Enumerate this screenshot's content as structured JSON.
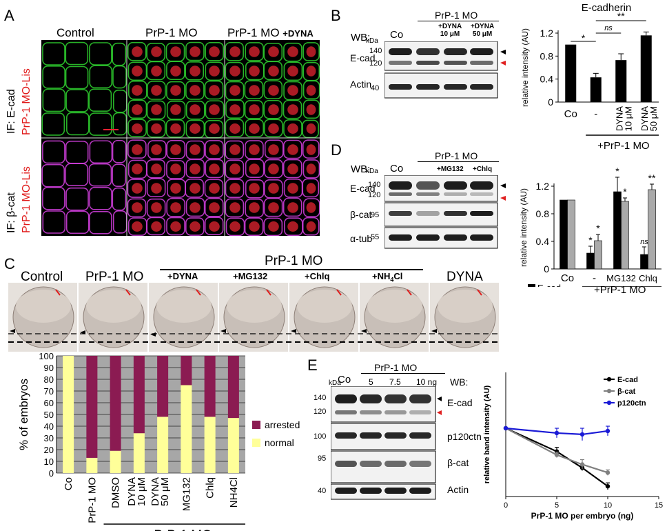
{
  "panels": {
    "A": {
      "letter": "A",
      "columns": [
        "Control",
        "PrP-1 MO",
        "PrP-1 MO",
        "+DYNA"
      ],
      "row1_label_a": "IF: E-cad",
      "row1_label_b": "PrP-1 MO-Lis",
      "row2_label_a": "IF: β-cat",
      "row2_label_b": "PrP-1 MO-Lis"
    },
    "B": {
      "letter": "B",
      "wb": "WB:",
      "kda": "kDa",
      "header_group": "PrP-1 MO",
      "lanes": [
        "Co",
        "",
        "+DYNA",
        "10 μM",
        "+DYNA",
        "50 μM"
      ],
      "bands": [
        "E-cad",
        "Actin"
      ],
      "markers": [
        "140",
        "120",
        "40"
      ],
      "chart_title": "E-cadherin"
    },
    "C": {
      "letter": "C",
      "embryos": [
        "Control",
        "PrP-1 MO",
        "DYNA"
      ],
      "group": "PrP-1 MO",
      "treatments": [
        "+DYNA",
        "+MG132",
        "+Chlq",
        "+NH",
        "4",
        "Cl"
      ],
      "legend": [
        "arrested",
        "normal"
      ],
      "group_label": "+PrP-1 MO"
    },
    "D": {
      "letter": "D",
      "wb": "WB:",
      "kda": "kDa",
      "lanes": [
        "Co",
        "+MG132",
        "+Chlq"
      ],
      "header_group": "PrP-1 MO",
      "bands": [
        "E-cad",
        "β-cat",
        "α-tub"
      ],
      "markers": [
        "140",
        "120",
        "95",
        "55"
      ],
      "legend": [
        "E-cad",
        "β-cat"
      ]
    },
    "E": {
      "letter": "E",
      "kda": "kDa",
      "wb": "WB:",
      "lanes": [
        "Co",
        "5",
        "7.5",
        "10 ng"
      ],
      "header_group": "PrP-1 MO",
      "bands": [
        "E-cad",
        "p120ctn",
        "β-cat",
        "Actin"
      ],
      "markers": [
        "140",
        "120",
        "100",
        "95",
        "40"
      ]
    }
  },
  "chart_data": [
    {
      "id": "B-ecadherin",
      "type": "bar",
      "title": "E-cadherin",
      "ylabel": "relative intensity (AU)",
      "ylim": [
        0,
        1.2
      ],
      "yticks": [
        "0",
        "0.4",
        "0.8",
        "1.2"
      ],
      "categories": [
        "Co",
        "-",
        "DYNA 10 μM",
        "DYNA 50 μM"
      ],
      "values": [
        1.0,
        0.43,
        0.73,
        1.16
      ],
      "errors": [
        0.0,
        0.07,
        0.11,
        0.06
      ],
      "group_label": "+PrP-1 MO",
      "significance": [
        {
          "label": "*"
        },
        {
          "label": "ns"
        },
        {
          "label": "**"
        }
      ]
    },
    {
      "id": "D-ecad-bcat",
      "type": "bar",
      "ylabel": "relative intensity (AU)",
      "ylim": [
        0,
        1.2
      ],
      "yticks": [
        "0",
        "0.4",
        "0.8",
        "1.2"
      ],
      "categories": [
        "Co",
        "-",
        "MG132",
        "Chlq"
      ],
      "series": [
        {
          "name": "E-cad",
          "values": [
            1.0,
            0.23,
            1.12,
            0.21
          ],
          "errors": [
            0.0,
            0.1,
            0.21,
            0.11
          ]
        },
        {
          "name": "β-cat",
          "values": [
            1.0,
            0.41,
            0.98,
            1.15
          ],
          "errors": [
            0.0,
            0.09,
            0.05,
            0.08
          ]
        }
      ],
      "annotations_ecad": [
        "",
        "*",
        "*",
        "ns"
      ],
      "annotations_bcat": [
        "",
        "*",
        "*",
        "**"
      ],
      "group_label": "+PrP-1 MO"
    },
    {
      "id": "C-embryos",
      "type": "bar",
      "stacked": true,
      "ylabel": "% of embryos",
      "ylim": [
        0,
        100
      ],
      "yticks": [
        "0",
        "10",
        "20",
        "30",
        "40",
        "50",
        "60",
        "70",
        "80",
        "90",
        "100"
      ],
      "categories": [
        "Co",
        "PrP-1 MO",
        "DMSO",
        "DYNA 10 μM",
        "DYNA 50 μM",
        "MG132",
        "Chlq",
        "NH4Cl"
      ],
      "series": [
        {
          "name": "normal",
          "values": [
            100,
            13,
            19,
            34,
            48,
            75,
            48,
            47
          ]
        },
        {
          "name": "arrested",
          "values": [
            0,
            87,
            81,
            66,
            52,
            25,
            52,
            53
          ]
        }
      ],
      "group_label": "+PrP-1 MO"
    },
    {
      "id": "E-dose",
      "type": "line",
      "xlabel": "PrP-1 MO per embryo (ng)",
      "ylabel": "relative band intensity (AU)",
      "xlim": [
        0,
        15
      ],
      "ylim": [
        0,
        1
      ],
      "xticks": [
        "0",
        "5",
        "10",
        "15"
      ],
      "series": [
        {
          "name": "E-cad",
          "x": [
            0,
            5,
            7.5,
            10
          ],
          "y": [
            1.0,
            0.66,
            0.42,
            0.15
          ],
          "errors": [
            0,
            0.06,
            0.04,
            0.05
          ]
        },
        {
          "name": "β-cat",
          "x": [
            0,
            5,
            7.5,
            10
          ],
          "y": [
            1.0,
            0.61,
            0.47,
            0.35
          ],
          "errors": [
            0,
            0.04,
            0.07,
            0.04
          ]
        },
        {
          "name": "p120ctn",
          "x": [
            0,
            5,
            7.5,
            10
          ],
          "y": [
            1.0,
            0.93,
            0.91,
            0.96
          ],
          "errors": [
            0,
            0.07,
            0.09,
            0.07
          ]
        }
      ],
      "colors": {
        "E-cad": "#000000",
        "β-cat": "#808080",
        "p120ctn": "#1a1ad6"
      }
    }
  ]
}
